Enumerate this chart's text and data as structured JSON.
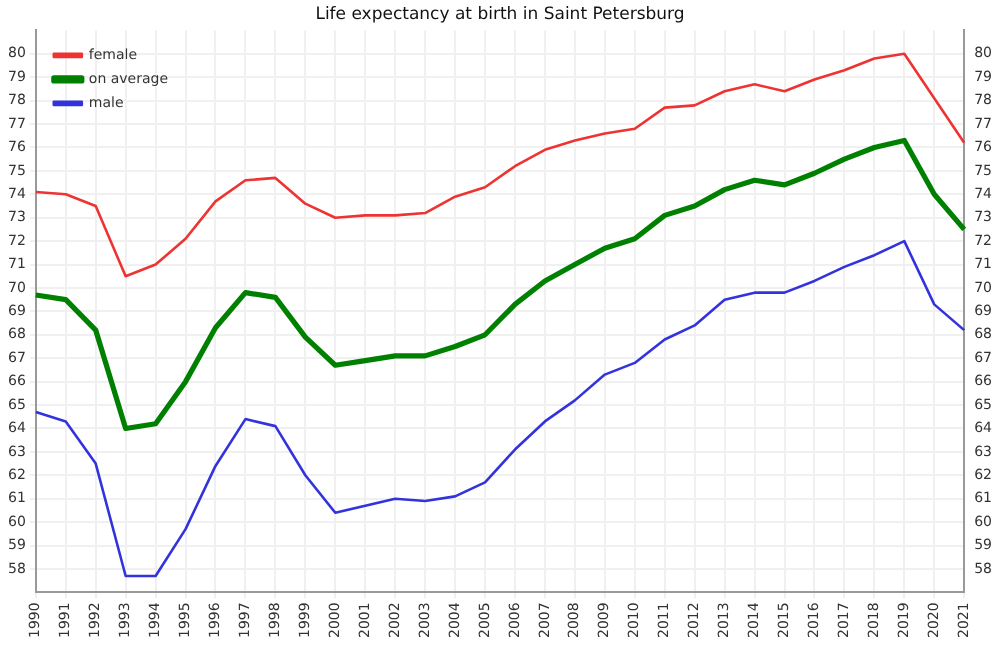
{
  "chart_data": {
    "type": "line",
    "title": "Life expectancy at birth in Saint Petersburg",
    "categories": [
      "1990",
      "1991",
      "1992",
      "1993",
      "1994",
      "1995",
      "1996",
      "1997",
      "1998",
      "1999",
      "2000",
      "2001",
      "2002",
      "2003",
      "2004",
      "2005",
      "2006",
      "2007",
      "2008",
      "2009",
      "2010",
      "2011",
      "2012",
      "2013",
      "2014",
      "2015",
      "2016",
      "2017",
      "2018",
      "2019",
      "2020",
      "2021"
    ],
    "series": [
      {
        "name": "female",
        "color": "#ee3333",
        "values": [
          74.1,
          74.0,
          73.5,
          70.5,
          71.0,
          72.1,
          73.7,
          74.6,
          74.7,
          73.6,
          73.0,
          73.1,
          73.1,
          73.2,
          73.9,
          74.3,
          75.2,
          75.9,
          76.3,
          76.6,
          76.8,
          77.7,
          77.8,
          78.4,
          78.7,
          78.4,
          78.9,
          79.3,
          79.8,
          80.0,
          78.1,
          76.2
        ]
      },
      {
        "name": "on average",
        "color": "#008000",
        "values": [
          69.7,
          69.5,
          68.2,
          64.0,
          64.2,
          66.0,
          68.3,
          69.8,
          69.6,
          67.9,
          66.7,
          66.9,
          67.1,
          67.1,
          67.5,
          68.0,
          69.3,
          70.3,
          71.0,
          71.7,
          72.1,
          73.1,
          73.5,
          74.2,
          74.6,
          74.4,
          74.9,
          75.5,
          76.0,
          76.3,
          74.0,
          72.5
        ]
      },
      {
        "name": "male",
        "color": "#3333dd",
        "values": [
          64.7,
          64.3,
          62.5,
          57.7,
          57.7,
          59.7,
          62.4,
          64.4,
          64.1,
          62.0,
          60.4,
          60.7,
          61.0,
          60.9,
          61.1,
          61.7,
          63.1,
          64.3,
          65.2,
          66.3,
          66.8,
          67.8,
          68.4,
          69.5,
          69.8,
          69.8,
          70.3,
          70.9,
          71.4,
          72.0,
          69.3,
          68.2
        ]
      }
    ],
    "ylim": [
      57,
      81
    ],
    "yticks": [
      58,
      59,
      60,
      61,
      62,
      63,
      64,
      65,
      66,
      67,
      68,
      69,
      70,
      71,
      72,
      73,
      74,
      75,
      76,
      77,
      78,
      79,
      80
    ],
    "y2lim": [
      57,
      81
    ],
    "y2ticks": [
      58,
      59,
      60,
      61,
      62,
      63,
      64,
      65,
      66,
      67,
      68,
      69,
      70,
      71,
      72,
      73,
      74,
      75,
      76,
      77,
      78,
      79,
      80
    ],
    "grid": true,
    "legend": "top left",
    "marker": "none",
    "line_style": "solid"
  }
}
